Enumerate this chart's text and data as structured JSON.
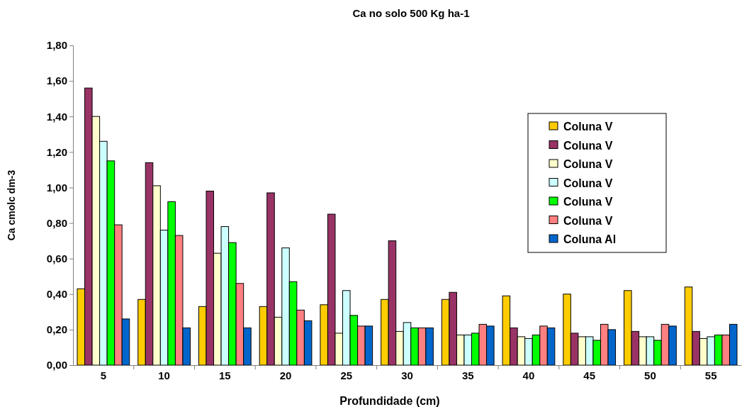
{
  "chart_data": {
    "type": "bar",
    "title": "Ca no solo 500 Kg ha-1",
    "xlabel": "Profundidade (cm)",
    "ylabel": "Ca cmolc dm-3",
    "categories": [
      "5",
      "10",
      "15",
      "20",
      "25",
      "30",
      "35",
      "40",
      "45",
      "50",
      "55"
    ],
    "series": [
      {
        "name": "Coluna V",
        "color": "#ffcc00",
        "values": [
          0.43,
          0.37,
          0.33,
          0.33,
          0.34,
          0.37,
          0.37,
          0.39,
          0.4,
          0.42,
          0.44
        ]
      },
      {
        "name": "Coluna V",
        "color": "#993366",
        "values": [
          1.56,
          1.14,
          0.98,
          0.97,
          0.85,
          0.7,
          0.41,
          0.21,
          0.18,
          0.19,
          0.19
        ]
      },
      {
        "name": "Coluna V",
        "color": "#ffffcc",
        "values": [
          1.4,
          1.01,
          0.63,
          0.27,
          0.18,
          0.19,
          0.17,
          0.16,
          0.16,
          0.16,
          0.15
        ]
      },
      {
        "name": "Coluna V",
        "color": "#ccffff",
        "values": [
          1.26,
          0.76,
          0.78,
          0.66,
          0.42,
          0.24,
          0.17,
          0.15,
          0.16,
          0.16,
          0.16
        ]
      },
      {
        "name": "Coluna V",
        "color": "#00ff00",
        "values": [
          1.15,
          0.92,
          0.69,
          0.47,
          0.28,
          0.21,
          0.18,
          0.17,
          0.14,
          0.14,
          0.17
        ]
      },
      {
        "name": "Coluna V",
        "color": "#ff8080",
        "values": [
          0.79,
          0.73,
          0.46,
          0.31,
          0.22,
          0.21,
          0.23,
          0.22,
          0.23,
          0.23,
          0.17
        ]
      },
      {
        "name": "Coluna Al",
        "color": "#0066cc",
        "values": [
          0.26,
          0.21,
          0.21,
          0.25,
          0.22,
          0.21,
          0.22,
          0.21,
          0.2,
          0.22,
          0.23
        ]
      }
    ],
    "ylim": [
      0,
      1.8
    ],
    "yticks": [
      {
        "value": 0,
        "label": "0,00"
      },
      {
        "value": 0.2,
        "label": "0,20"
      },
      {
        "value": 0.4,
        "label": "0,40"
      },
      {
        "value": 0.6,
        "label": "0,60"
      },
      {
        "value": 0.8,
        "label": "0,80"
      },
      {
        "value": 1.0,
        "label": "1,00"
      },
      {
        "value": 1.2,
        "label": "1,20"
      },
      {
        "value": 1.4,
        "label": "1,40"
      },
      {
        "value": 1.6,
        "label": "1,60"
      },
      {
        "value": 1.8,
        "label": "1,80"
      }
    ],
    "legend": "right"
  }
}
